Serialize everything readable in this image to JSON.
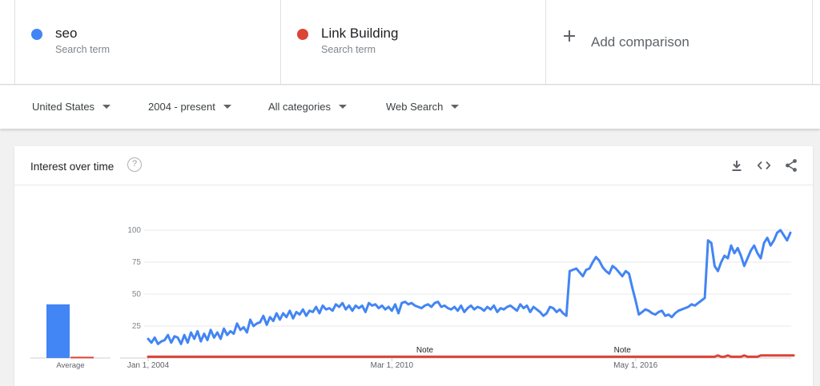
{
  "comparison": {
    "terms": [
      {
        "name": "seo",
        "sub": "Search term",
        "color": "#4285f4"
      },
      {
        "name": "Link Building",
        "sub": "Search term",
        "color": "#db4437"
      }
    ],
    "add_label": "Add comparison"
  },
  "filters": {
    "region": "United States",
    "time": "2004 - present",
    "category": "All categories",
    "property": "Web Search"
  },
  "card": {
    "title": "Interest over time",
    "help": "?"
  },
  "chart_data": {
    "type": "line",
    "title": "Interest over time",
    "ylim": [
      0,
      100
    ],
    "y_ticks": [
      25,
      50,
      75,
      100
    ],
    "x_tick_labels": [
      "Jan 1, 2004",
      "Mar 1, 2010",
      "May 1, 2016"
    ],
    "average_label": "Average",
    "notes": [
      {
        "label": "Note",
        "date": "Jan 2011"
      },
      {
        "label": "Note",
        "date": "Jan 2016"
      }
    ],
    "averages": {
      "seo": 42,
      "Link Building": 1
    },
    "series": [
      {
        "name": "seo",
        "color": "#4285f4",
        "values": [
          15,
          12,
          16,
          11,
          13,
          14,
          18,
          12,
          17,
          16,
          11,
          18,
          12,
          20,
          15,
          21,
          13,
          19,
          14,
          22,
          16,
          20,
          15,
          23,
          18,
          21,
          19,
          27,
          22,
          24,
          20,
          30,
          25,
          27,
          28,
          33,
          26,
          32,
          29,
          35,
          30,
          35,
          32,
          37,
          31,
          36,
          34,
          38,
          33,
          37,
          36,
          40,
          35,
          41,
          38,
          39,
          37,
          42,
          40,
          43,
          38,
          41,
          37,
          41,
          39,
          41,
          36,
          43,
          41,
          42,
          39,
          41,
          38,
          40,
          37,
          42,
          35,
          43,
          44,
          42,
          43,
          41,
          40,
          39,
          41,
          42,
          40,
          43,
          44,
          40,
          41,
          39,
          38,
          40,
          37,
          41,
          36,
          39,
          41,
          38,
          40,
          39,
          37,
          40,
          38,
          41,
          36,
          39,
          38,
          40,
          41,
          39,
          37,
          42,
          39,
          41,
          36,
          40,
          38,
          36,
          33,
          35,
          40,
          39,
          36,
          38,
          35,
          33,
          68,
          69,
          70,
          67,
          64,
          69,
          70,
          75,
          79,
          76,
          71,
          68,
          66,
          72,
          70,
          67,
          64,
          68,
          66,
          55,
          45,
          34,
          36,
          38,
          37,
          35,
          34,
          36,
          37,
          33,
          34,
          32,
          35,
          37,
          38,
          39,
          40,
          42,
          41,
          43,
          45,
          47,
          92,
          90,
          72,
          68,
          75,
          80,
          78,
          88,
          82,
          86,
          80,
          72,
          78,
          84,
          88,
          82,
          78,
          90,
          94,
          88,
          92,
          98,
          100,
          96,
          92,
          98
        ]
      },
      {
        "name": "Link Building",
        "color": "#db4437",
        "values": [
          1,
          1,
          1,
          1,
          1,
          1,
          1,
          1,
          1,
          1,
          1,
          1,
          1,
          1,
          1,
          1,
          1,
          1,
          1,
          1,
          1,
          1,
          1,
          1,
          1,
          1,
          1,
          1,
          1,
          1,
          1,
          1,
          1,
          1,
          1,
          1,
          1,
          1,
          1,
          1,
          1,
          1,
          1,
          1,
          1,
          1,
          1,
          1,
          1,
          1,
          1,
          1,
          1,
          1,
          1,
          1,
          1,
          1,
          1,
          1,
          1,
          1,
          1,
          1,
          1,
          1,
          1,
          1,
          1,
          1,
          1,
          1,
          1,
          1,
          1,
          1,
          1,
          1,
          1,
          1,
          1,
          1,
          1,
          1,
          1,
          1,
          1,
          1,
          1,
          1,
          1,
          1,
          1,
          1,
          1,
          1,
          1,
          1,
          1,
          1,
          1,
          1,
          1,
          1,
          1,
          1,
          1,
          1,
          1,
          1,
          1,
          1,
          1,
          1,
          1,
          1,
          1,
          1,
          1,
          1,
          1,
          1,
          1,
          1,
          1,
          1,
          1,
          1,
          1,
          1,
          1,
          1,
          1,
          1,
          1,
          1,
          1,
          1,
          1,
          1,
          1,
          1,
          1,
          1,
          1,
          1,
          1,
          1,
          1,
          1,
          1,
          1,
          1,
          1,
          1,
          1,
          1,
          1,
          1,
          1,
          1,
          1,
          1,
          1,
          1,
          1,
          1,
          1,
          1,
          1,
          1,
          1,
          1,
          2,
          1,
          1,
          2,
          1,
          1,
          1,
          1,
          2,
          1,
          1,
          1,
          1,
          2,
          2,
          2,
          2,
          2,
          2,
          2,
          2,
          2,
          2,
          2
        ]
      }
    ]
  }
}
